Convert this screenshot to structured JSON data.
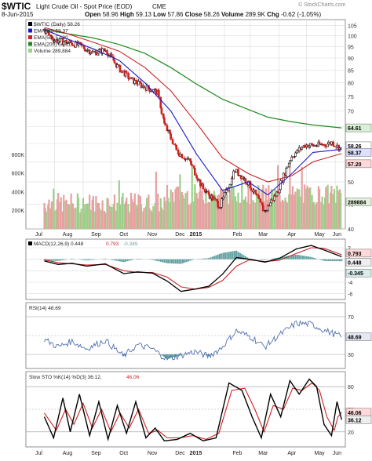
{
  "header": {
    "ticker": "$WTIC",
    "description": "Light Crude Oil - Spot Price (EOD)",
    "exchange": "CME",
    "date": "8-Jun-2015",
    "open_label": "Open",
    "open": "58.96",
    "high_label": "High",
    "high": "59.13",
    "low_label": "Low",
    "low": "57.86",
    "close_label": "Close",
    "close": "58.26",
    "volume_label": "Volume",
    "volume": "289.9K",
    "chg_label": "Chg",
    "chg": "-0.62 (-1.05%)",
    "watermark": "© StockCharts.com"
  },
  "colors": {
    "up": "#111111",
    "down": "#cc2222",
    "ema20": "#1a1acc",
    "ema50": "#cc2222",
    "ema200": "#1c8a1c",
    "volume_up": "#9ccf8a",
    "volume_down": "#e7a0a0",
    "macd": "#000000",
    "signal": "#cc2222",
    "histogram": "#5f9ea0",
    "rsi": "#5070b0",
    "sto_k": "#000000",
    "sto_d": "#cc2222",
    "grid": "#dadada"
  },
  "chart_data": [
    {
      "type": "candlestick",
      "panel": "price",
      "legend": [
        {
          "label": "$WTIC (Daily) 58.26",
          "color": "#000000"
        },
        {
          "label": "EMA(20) 58.37",
          "color": "#1a1acc"
        },
        {
          "label": "EMA(50) 57.20",
          "color": "#cc2222"
        },
        {
          "label": "EMA(200) 64.61",
          "color": "#1c8a1c"
        },
        {
          "label": "Volume 289,884",
          "color": "#9ccf8a"
        }
      ],
      "y_ticks": [
        40,
        45,
        50,
        55,
        60,
        65,
        70,
        75,
        80,
        85,
        90,
        95,
        100,
        105
      ],
      "ylim": [
        40,
        108
      ],
      "scale": "log",
      "x_ticks": [
        "Jul",
        "Aug",
        "Sep",
        "Oct",
        "Nov",
        "Dec",
        "2015",
        "Feb",
        "Mar",
        "Apr",
        "May",
        "Jun"
      ],
      "volume_ticks": [
        "800K",
        "600K",
        "400K",
        "200K"
      ],
      "volume_ylim": [
        0,
        900000
      ],
      "right_labels": {
        "ema200": "64.61",
        "close": "58.26",
        "ema20": "58.37",
        "ema50": "57.20",
        "volume": "289884"
      },
      "close_series": [
        {
          "x": "2014-07-21",
          "y": 103.0
        },
        {
          "x": "2014-08-01",
          "y": 98.0
        },
        {
          "x": "2014-08-15",
          "y": 97.0
        },
        {
          "x": "2014-08-29",
          "y": 95.5
        },
        {
          "x": "2014-09-12",
          "y": 92.3
        },
        {
          "x": "2014-09-26",
          "y": 93.5
        },
        {
          "x": "2014-10-10",
          "y": 85.8
        },
        {
          "x": "2014-10-24",
          "y": 81.0
        },
        {
          "x": "2014-11-07",
          "y": 78.5
        },
        {
          "x": "2014-11-21",
          "y": 76.5
        },
        {
          "x": "2014-11-28",
          "y": 66.0
        },
        {
          "x": "2014-12-12",
          "y": 57.8
        },
        {
          "x": "2014-12-26",
          "y": 55.0
        },
        {
          "x": "2015-01-09",
          "y": 48.5
        },
        {
          "x": "2015-01-28",
          "y": 44.5
        },
        {
          "x": "2015-02-13",
          "y": 52.8
        },
        {
          "x": "2015-02-27",
          "y": 49.8
        },
        {
          "x": "2015-03-17",
          "y": 43.5
        },
        {
          "x": "2015-03-31",
          "y": 47.6
        },
        {
          "x": "2015-04-15",
          "y": 56.4
        },
        {
          "x": "2015-04-30",
          "y": 59.6
        },
        {
          "x": "2015-05-08",
          "y": 59.4
        },
        {
          "x": "2015-05-22",
          "y": 59.7
        },
        {
          "x": "2015-05-29",
          "y": 60.3
        },
        {
          "x": "2015-06-08",
          "y": 58.26
        }
      ],
      "ema20_series": [
        {
          "x": "2014-07-21",
          "y": 103.0
        },
        {
          "x": "2014-08-15",
          "y": 98.5
        },
        {
          "x": "2014-09-12",
          "y": 94.0
        },
        {
          "x": "2014-10-10",
          "y": 89.0
        },
        {
          "x": "2014-11-07",
          "y": 80.0
        },
        {
          "x": "2014-12-05",
          "y": 70.0
        },
        {
          "x": "2015-01-02",
          "y": 57.0
        },
        {
          "x": "2015-01-30",
          "y": 48.0
        },
        {
          "x": "2015-02-27",
          "y": 50.0
        },
        {
          "x": "2015-03-20",
          "y": 47.0
        },
        {
          "x": "2015-04-15",
          "y": 52.0
        },
        {
          "x": "2015-05-08",
          "y": 57.5
        },
        {
          "x": "2015-06-08",
          "y": 58.37
        }
      ],
      "ema50_series": [
        {
          "x": "2014-07-21",
          "y": 104.0
        },
        {
          "x": "2014-08-15",
          "y": 101.0
        },
        {
          "x": "2014-09-12",
          "y": 97.0
        },
        {
          "x": "2014-10-10",
          "y": 93.0
        },
        {
          "x": "2014-11-07",
          "y": 86.0
        },
        {
          "x": "2014-12-05",
          "y": 77.0
        },
        {
          "x": "2015-01-02",
          "y": 66.0
        },
        {
          "x": "2015-01-30",
          "y": 56.0
        },
        {
          "x": "2015-02-27",
          "y": 52.0
        },
        {
          "x": "2015-03-20",
          "y": 50.0
        },
        {
          "x": "2015-04-15",
          "y": 51.5
        },
        {
          "x": "2015-05-08",
          "y": 55.0
        },
        {
          "x": "2015-06-08",
          "y": 57.2
        }
      ],
      "ema200_series": [
        {
          "x": "2014-07-21",
          "y": 103.0
        },
        {
          "x": "2014-08-15",
          "y": 101.0
        },
        {
          "x": "2014-09-12",
          "y": 99.0
        },
        {
          "x": "2014-10-10",
          "y": 96.0
        },
        {
          "x": "2014-11-07",
          "y": 92.0
        },
        {
          "x": "2014-12-05",
          "y": 86.0
        },
        {
          "x": "2015-01-02",
          "y": 79.5
        },
        {
          "x": "2015-01-30",
          "y": 74.0
        },
        {
          "x": "2015-02-27",
          "y": 70.5
        },
        {
          "x": "2015-03-20",
          "y": 68.0
        },
        {
          "x": "2015-04-15",
          "y": 66.5
        },
        {
          "x": "2015-05-08",
          "y": 65.5
        },
        {
          "x": "2015-06-08",
          "y": 64.61
        }
      ]
    },
    {
      "type": "line",
      "panel": "macd",
      "legend": [
        {
          "label": "MACD(12,26,9) 0.448",
          "color": "#000000"
        },
        {
          "label": "0.793",
          "color": "#cc2222"
        },
        {
          "label": "-0.345",
          "color": "#5f9ea0"
        }
      ],
      "y_ticks": [
        2,
        0,
        -2,
        -4,
        -6
      ],
      "ylim": [
        -7,
        3.5
      ],
      "right_labels": [
        "0.793",
        "0.448",
        "-0.345"
      ],
      "macd": [
        {
          "x": "2014-07-21",
          "y": -0.3
        },
        {
          "x": "2014-08-05",
          "y": -0.9
        },
        {
          "x": "2014-08-20",
          "y": -0.7
        },
        {
          "x": "2014-09-05",
          "y": -1.2
        },
        {
          "x": "2014-09-25",
          "y": -0.8
        },
        {
          "x": "2014-10-15",
          "y": -2.5
        },
        {
          "x": "2014-10-30",
          "y": -2.2
        },
        {
          "x": "2014-11-15",
          "y": -2.4
        },
        {
          "x": "2014-12-01",
          "y": -3.8
        },
        {
          "x": "2014-12-16",
          "y": -5.6
        },
        {
          "x": "2014-12-31",
          "y": -5.2
        },
        {
          "x": "2015-01-15",
          "y": -4.7
        },
        {
          "x": "2015-01-30",
          "y": -2.6
        },
        {
          "x": "2015-02-14",
          "y": 0.3
        },
        {
          "x": "2015-02-28",
          "y": 0.0
        },
        {
          "x": "2015-03-17",
          "y": -0.5
        },
        {
          "x": "2015-04-01",
          "y": 0.1
        },
        {
          "x": "2015-04-20",
          "y": 1.8
        },
        {
          "x": "2015-05-06",
          "y": 2.4
        },
        {
          "x": "2015-05-20",
          "y": 1.6
        },
        {
          "x": "2015-06-08",
          "y": 0.448
        }
      ],
      "signal": [
        {
          "x": "2014-07-21",
          "y": -0.1
        },
        {
          "x": "2014-08-05",
          "y": -0.6
        },
        {
          "x": "2014-08-20",
          "y": -0.8
        },
        {
          "x": "2014-09-05",
          "y": -1.0
        },
        {
          "x": "2014-09-25",
          "y": -0.9
        },
        {
          "x": "2014-10-15",
          "y": -2.0
        },
        {
          "x": "2014-10-30",
          "y": -2.3
        },
        {
          "x": "2014-11-15",
          "y": -2.3
        },
        {
          "x": "2014-12-01",
          "y": -3.1
        },
        {
          "x": "2014-12-16",
          "y": -4.8
        },
        {
          "x": "2014-12-31",
          "y": -5.2
        },
        {
          "x": "2015-01-15",
          "y": -4.9
        },
        {
          "x": "2015-01-30",
          "y": -3.7
        },
        {
          "x": "2015-02-14",
          "y": -1.2
        },
        {
          "x": "2015-02-28",
          "y": -0.1
        },
        {
          "x": "2015-03-17",
          "y": -0.4
        },
        {
          "x": "2015-04-01",
          "y": -0.2
        },
        {
          "x": "2015-04-20",
          "y": 1.0
        },
        {
          "x": "2015-05-06",
          "y": 2.0
        },
        {
          "x": "2015-05-20",
          "y": 1.9
        },
        {
          "x": "2015-06-08",
          "y": 0.793
        }
      ]
    },
    {
      "type": "line",
      "panel": "rsi",
      "legend": [
        {
          "label": "RSI(14) 48.69",
          "color": "#5070b0"
        }
      ],
      "y_ticks": [
        70,
        50,
        30
      ],
      "ylim": [
        15,
        85
      ],
      "right_labels": [
        "48.69"
      ],
      "rsi": [
        {
          "x": "2014-07-21",
          "y": 46
        },
        {
          "x": "2014-08-05",
          "y": 38
        },
        {
          "x": "2014-08-20",
          "y": 44
        },
        {
          "x": "2014-09-05",
          "y": 36
        },
        {
          "x": "2014-09-25",
          "y": 45
        },
        {
          "x": "2014-10-15",
          "y": 28
        },
        {
          "x": "2014-10-30",
          "y": 40
        },
        {
          "x": "2014-11-15",
          "y": 36
        },
        {
          "x": "2014-12-01",
          "y": 25
        },
        {
          "x": "2014-12-16",
          "y": 29
        },
        {
          "x": "2014-12-31",
          "y": 33
        },
        {
          "x": "2015-01-15",
          "y": 28
        },
        {
          "x": "2015-01-28",
          "y": 36
        },
        {
          "x": "2015-02-14",
          "y": 55
        },
        {
          "x": "2015-03-03",
          "y": 48
        },
        {
          "x": "2015-03-17",
          "y": 38
        },
        {
          "x": "2015-04-01",
          "y": 50
        },
        {
          "x": "2015-04-20",
          "y": 63
        },
        {
          "x": "2015-05-06",
          "y": 62
        },
        {
          "x": "2015-05-20",
          "y": 56
        },
        {
          "x": "2015-06-08",
          "y": 48.69
        }
      ]
    },
    {
      "type": "line",
      "panel": "stochastic",
      "legend": [
        {
          "label": "Slow STO %K(14) %D(3) 36.12,",
          "color": "#000000"
        },
        {
          "label": "46.06",
          "color": "#cc2222"
        }
      ],
      "y_ticks": [
        80,
        50,
        20
      ],
      "ylim": [
        0,
        100
      ],
      "right_labels": [
        "46.06",
        "36.12"
      ],
      "x_ticks": [
        "Jul",
        "Aug",
        "Sep",
        "Oct",
        "Nov",
        "Dec",
        "2015",
        "Feb",
        "Mar",
        "Apr",
        "May",
        "Jun"
      ],
      "k": [
        {
          "x": "2014-07-21",
          "y": 40
        },
        {
          "x": "2014-07-31",
          "y": 12
        },
        {
          "x": "2014-08-10",
          "y": 65
        },
        {
          "x": "2014-08-18",
          "y": 20
        },
        {
          "x": "2014-08-28",
          "y": 70
        },
        {
          "x": "2014-09-08",
          "y": 15
        },
        {
          "x": "2014-09-18",
          "y": 60
        },
        {
          "x": "2014-09-28",
          "y": 10
        },
        {
          "x": "2014-10-08",
          "y": 55
        },
        {
          "x": "2014-10-18",
          "y": 18
        },
        {
          "x": "2014-10-28",
          "y": 60
        },
        {
          "x": "2014-11-08",
          "y": 12
        },
        {
          "x": "2014-11-18",
          "y": 25
        },
        {
          "x": "2014-11-28",
          "y": 8
        },
        {
          "x": "2014-12-12",
          "y": 10
        },
        {
          "x": "2014-12-26",
          "y": 18
        },
        {
          "x": "2015-01-09",
          "y": 8
        },
        {
          "x": "2015-01-23",
          "y": 12
        },
        {
          "x": "2015-02-06",
          "y": 85
        },
        {
          "x": "2015-02-20",
          "y": 75
        },
        {
          "x": "2015-03-03",
          "y": 40
        },
        {
          "x": "2015-03-13",
          "y": 12
        },
        {
          "x": "2015-03-23",
          "y": 70
        },
        {
          "x": "2015-04-03",
          "y": 40
        },
        {
          "x": "2015-04-13",
          "y": 88
        },
        {
          "x": "2015-04-23",
          "y": 70
        },
        {
          "x": "2015-05-04",
          "y": 90
        },
        {
          "x": "2015-05-12",
          "y": 80
        },
        {
          "x": "2015-05-20",
          "y": 30
        },
        {
          "x": "2015-05-28",
          "y": 15
        },
        {
          "x": "2015-06-03",
          "y": 60
        },
        {
          "x": "2015-06-08",
          "y": 36.12
        }
      ],
      "d": [
        {
          "x": "2014-07-21",
          "y": 45
        },
        {
          "x": "2014-08-03",
          "y": 22
        },
        {
          "x": "2014-08-13",
          "y": 50
        },
        {
          "x": "2014-08-22",
          "y": 30
        },
        {
          "x": "2014-09-01",
          "y": 58
        },
        {
          "x": "2014-09-11",
          "y": 25
        },
        {
          "x": "2014-09-21",
          "y": 50
        },
        {
          "x": "2014-10-01",
          "y": 20
        },
        {
          "x": "2014-10-11",
          "y": 45
        },
        {
          "x": "2014-10-21",
          "y": 25
        },
        {
          "x": "2014-10-31",
          "y": 50
        },
        {
          "x": "2014-11-11",
          "y": 18
        },
        {
          "x": "2014-11-21",
          "y": 22
        },
        {
          "x": "2014-12-01",
          "y": 12
        },
        {
          "x": "2014-12-15",
          "y": 12
        },
        {
          "x": "2014-12-29",
          "y": 15
        },
        {
          "x": "2015-01-12",
          "y": 10
        },
        {
          "x": "2015-01-26",
          "y": 18
        },
        {
          "x": "2015-02-09",
          "y": 75
        },
        {
          "x": "2015-02-23",
          "y": 78
        },
        {
          "x": "2015-03-06",
          "y": 50
        },
        {
          "x": "2015-03-16",
          "y": 20
        },
        {
          "x": "2015-03-26",
          "y": 55
        },
        {
          "x": "2015-04-06",
          "y": 50
        },
        {
          "x": "2015-04-16",
          "y": 78
        },
        {
          "x": "2015-04-26",
          "y": 75
        },
        {
          "x": "2015-05-07",
          "y": 85
        },
        {
          "x": "2015-05-15",
          "y": 75
        },
        {
          "x": "2015-05-23",
          "y": 40
        },
        {
          "x": "2015-05-31",
          "y": 22
        },
        {
          "x": "2015-06-04",
          "y": 40
        },
        {
          "x": "2015-06-08",
          "y": 46.06
        }
      ]
    }
  ]
}
